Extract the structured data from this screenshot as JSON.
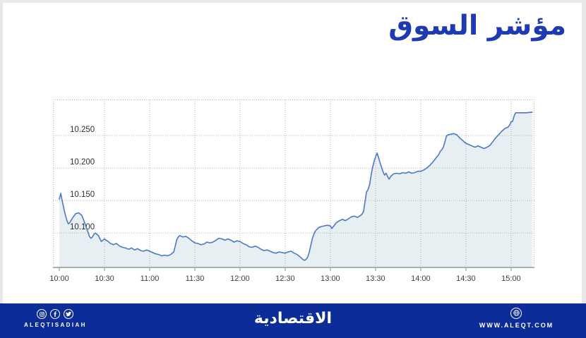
{
  "header": {
    "title": "مؤشر السوق",
    "title_color": "#1d39b4"
  },
  "chart_data": {
    "type": "area",
    "title": "مؤشر السوق",
    "xlabel": "",
    "ylabel": "",
    "grid": true,
    "legend": false,
    "x_axis": {
      "tick_labels": [
        "10:00",
        "10:30",
        "11:00",
        "11:30",
        "12:00",
        "12:30",
        "13:00",
        "13:30",
        "14:00",
        "14:30",
        "15:00"
      ],
      "tick_minutes": [
        0,
        30,
        60,
        90,
        120,
        150,
        180,
        210,
        240,
        270,
        300
      ],
      "grid_minutes": [
        30,
        60,
        90,
        120,
        150,
        180,
        210,
        240,
        270,
        300
      ],
      "range_minutes": [
        -4.2,
        315.5
      ]
    },
    "y_axis": {
      "tick_labels": [
        "10.250",
        "10.200",
        "10.150",
        "10.100"
      ],
      "tick_values": [
        10.25,
        10.2,
        10.15,
        10.1
      ],
      "range": [
        10.046,
        10.3054
      ]
    },
    "series": [
      {
        "name": "market-index",
        "points": [
          [
            0,
            10.152
          ],
          [
            1,
            10.161
          ],
          [
            2,
            10.149
          ],
          [
            3,
            10.138
          ],
          [
            4,
            10.128
          ],
          [
            5,
            10.12
          ],
          [
            6,
            10.114
          ],
          [
            7,
            10.116
          ],
          [
            8,
            10.12
          ],
          [
            9,
            10.124
          ],
          [
            10,
            10.127
          ],
          [
            11,
            10.13
          ],
          [
            13,
            10.131
          ],
          [
            15,
            10.127
          ],
          [
            16,
            10.121
          ],
          [
            17,
            10.115
          ],
          [
            18,
            10.108
          ],
          [
            19,
            10.102
          ],
          [
            20,
            10.095
          ],
          [
            21,
            10.092
          ],
          [
            22,
            10.094
          ],
          [
            23,
            10.098
          ],
          [
            24,
            10.1
          ],
          [
            25,
            10.098
          ],
          [
            26,
            10.096
          ],
          [
            27,
            10.091
          ],
          [
            28,
            10.087
          ],
          [
            29,
            10.089
          ],
          [
            30,
            10.091
          ],
          [
            31,
            10.089
          ],
          [
            32,
            10.088
          ],
          [
            34,
            10.084
          ],
          [
            36,
            10.082
          ],
          [
            38,
            10.084
          ],
          [
            40,
            10.08
          ],
          [
            42,
            10.078
          ],
          [
            44,
            10.077
          ],
          [
            46,
            10.075
          ],
          [
            48,
            10.077
          ],
          [
            50,
            10.074
          ],
          [
            52,
            10.076
          ],
          [
            54,
            10.073
          ],
          [
            56,
            10.072
          ],
          [
            58,
            10.074
          ],
          [
            60,
            10.072
          ],
          [
            62,
            10.07
          ],
          [
            64,
            10.068
          ],
          [
            66,
            10.067
          ],
          [
            68,
            10.065
          ],
          [
            70,
            10.066
          ],
          [
            72,
            10.065
          ],
          [
            74,
            10.067
          ],
          [
            76,
            10.071
          ],
          [
            77,
            10.08
          ],
          [
            78,
            10.09
          ],
          [
            79,
            10.094
          ],
          [
            80,
            10.096
          ],
          [
            82,
            10.094
          ],
          [
            84,
            10.095
          ],
          [
            86,
            10.092
          ],
          [
            88,
            10.088
          ],
          [
            90,
            10.085
          ],
          [
            92,
            10.084
          ],
          [
            94,
            10.082
          ],
          [
            96,
            10.083
          ],
          [
            98,
            10.086
          ],
          [
            100,
            10.085
          ],
          [
            102,
            10.086
          ],
          [
            104,
            10.089
          ],
          [
            106,
            10.092
          ],
          [
            108,
            10.091
          ],
          [
            110,
            10.089
          ],
          [
            112,
            10.091
          ],
          [
            114,
            10.089
          ],
          [
            116,
            10.086
          ],
          [
            118,
            10.088
          ],
          [
            120,
            10.087
          ],
          [
            122,
            10.084
          ],
          [
            124,
            10.082
          ],
          [
            126,
            10.079
          ],
          [
            128,
            10.078
          ],
          [
            130,
            10.08
          ],
          [
            132,
            10.078
          ],
          [
            134,
            10.075
          ],
          [
            136,
            10.073
          ],
          [
            138,
            10.074
          ],
          [
            140,
            10.072
          ],
          [
            142,
            10.07
          ],
          [
            144,
            10.069
          ],
          [
            146,
            10.071
          ],
          [
            148,
            10.07
          ],
          [
            150,
            10.069
          ],
          [
            152,
            10.071
          ],
          [
            154,
            10.072
          ],
          [
            156,
            10.069
          ],
          [
            158,
            10.067
          ],
          [
            160,
            10.063
          ],
          [
            162,
            10.059
          ],
          [
            163,
            10.058
          ],
          [
            164,
            10.06
          ],
          [
            165,
            10.063
          ],
          [
            166,
            10.071
          ],
          [
            167,
            10.081
          ],
          [
            168,
            10.091
          ],
          [
            169,
            10.098
          ],
          [
            170,
            10.103
          ],
          [
            172,
            10.108
          ],
          [
            174,
            10.11
          ],
          [
            176,
            10.111
          ],
          [
            178,
            10.112
          ],
          [
            180,
            10.111
          ],
          [
            181,
            10.107
          ],
          [
            182,
            10.11
          ],
          [
            184,
            10.116
          ],
          [
            186,
            10.119
          ],
          [
            188,
            10.121
          ],
          [
            190,
            10.119
          ],
          [
            192,
            10.122
          ],
          [
            194,
            10.125
          ],
          [
            196,
            10.126
          ],
          [
            198,
            10.124
          ],
          [
            200,
            10.127
          ],
          [
            201,
            10.129
          ],
          [
            202,
            10.133
          ],
          [
            203,
            10.148
          ],
          [
            204,
            10.163
          ],
          [
            205,
            10.167
          ],
          [
            206,
            10.174
          ],
          [
            207,
            10.188
          ],
          [
            208,
            10.201
          ],
          [
            209,
            10.21
          ],
          [
            210,
            10.217
          ],
          [
            211,
            10.223
          ],
          [
            212,
            10.216
          ],
          [
            213,
            10.208
          ],
          [
            214,
            10.201
          ],
          [
            215,
            10.194
          ],
          [
            216,
            10.189
          ],
          [
            217,
            10.192
          ],
          [
            218,
            10.187
          ],
          [
            219,
            10.183
          ],
          [
            220,
            10.187
          ],
          [
            222,
            10.191
          ],
          [
            224,
            10.192
          ],
          [
            226,
            10.191
          ],
          [
            228,
            10.193
          ],
          [
            230,
            10.192
          ],
          [
            232,
            10.194
          ],
          [
            234,
            10.192
          ],
          [
            236,
            10.193
          ],
          [
            238,
            10.195
          ],
          [
            240,
            10.195
          ],
          [
            242,
            10.197
          ],
          [
            244,
            10.2
          ],
          [
            246,
            10.204
          ],
          [
            248,
            10.209
          ],
          [
            250,
            10.215
          ],
          [
            252,
            10.221
          ],
          [
            253,
            10.226
          ],
          [
            254,
            10.228
          ],
          [
            255,
            10.232
          ],
          [
            256,
            10.24
          ],
          [
            257,
            10.249
          ],
          [
            258,
            10.251
          ],
          [
            260,
            10.252
          ],
          [
            262,
            10.253
          ],
          [
            264,
            10.251
          ],
          [
            266,
            10.246
          ],
          [
            268,
            10.242
          ],
          [
            270,
            10.238
          ],
          [
            272,
            10.236
          ],
          [
            274,
            10.234
          ],
          [
            276,
            10.232
          ],
          [
            278,
            10.234
          ],
          [
            280,
            10.232
          ],
          [
            282,
            10.23
          ],
          [
            284,
            10.232
          ],
          [
            286,
            10.235
          ],
          [
            288,
            10.241
          ],
          [
            290,
            10.247
          ],
          [
            292,
            10.252
          ],
          [
            294,
            10.257
          ],
          [
            296,
            10.261
          ],
          [
            298,
            10.263
          ],
          [
            299,
            10.266
          ],
          [
            300,
            10.271
          ],
          [
            301,
            10.272
          ],
          [
            302,
            10.28
          ],
          [
            303,
            10.285
          ],
          [
            306,
            10.285
          ],
          [
            310,
            10.285
          ],
          [
            314,
            10.286
          ]
        ]
      }
    ],
    "colors": {
      "line": "#4b79c9",
      "fill": "#e8eff2",
      "grid": "#b2b2b2",
      "axis": "#a2b4a9"
    }
  },
  "footer": {
    "background": "#0c2c97",
    "handle": "ALEQTISADIAH",
    "logo_text": "الاقتصادية",
    "website": "WWW.ALEQT.COM",
    "icons": [
      "instagram-icon",
      "facebook-icon",
      "twitter-icon",
      "globe-icon"
    ]
  }
}
